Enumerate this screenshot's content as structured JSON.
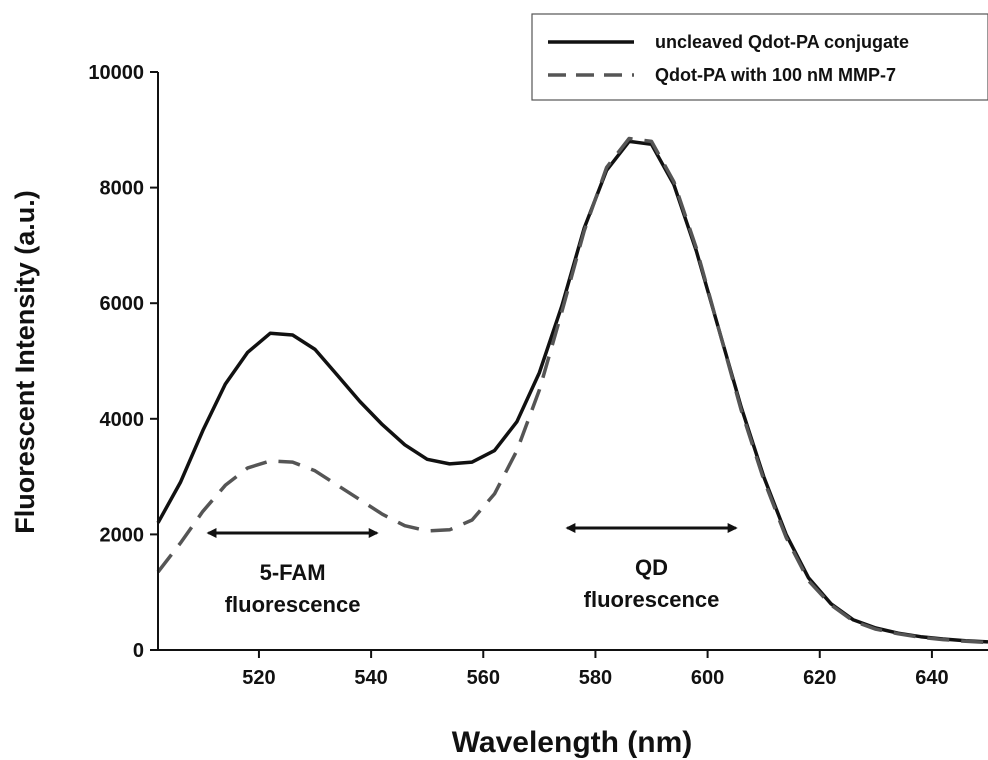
{
  "chart_data": {
    "type": "line",
    "xlabel": "Wavelength (nm)",
    "ylabel": "Fluorescent Intensity (a.u.)",
    "xlim": [
      502,
      650
    ],
    "ylim": [
      0,
      10000
    ],
    "x_ticks": [
      520,
      540,
      560,
      580,
      600,
      620,
      640
    ],
    "y_ticks": [
      0,
      2000,
      4000,
      6000,
      8000,
      10000
    ],
    "x_tick_labels": [
      "520",
      "540",
      "560",
      "580",
      "600",
      "620",
      "640"
    ],
    "y_tick_labels": [
      "0",
      "2000",
      "4000",
      "6000",
      "8000",
      "10000"
    ],
    "grid": false,
    "legend_position": "top-right",
    "series": [
      {
        "name": "uncleaved Qdot-PA conjugate",
        "style": "solid",
        "color": "#111111",
        "x": [
          502,
          506,
          510,
          514,
          518,
          522,
          526,
          530,
          534,
          538,
          542,
          546,
          550,
          554,
          558,
          562,
          566,
          570,
          574,
          578,
          582,
          586,
          590,
          594,
          598,
          602,
          606,
          610,
          614,
          618,
          622,
          626,
          630,
          634,
          638,
          642,
          646,
          650
        ],
        "values": [
          2200,
          2900,
          3800,
          4600,
          5150,
          5480,
          5450,
          5200,
          4750,
          4300,
          3900,
          3550,
          3300,
          3220,
          3250,
          3450,
          3950,
          4800,
          5950,
          7300,
          8300,
          8800,
          8750,
          8050,
          6900,
          5550,
          4200,
          3000,
          2000,
          1250,
          800,
          520,
          380,
          290,
          230,
          190,
          160,
          140
        ]
      },
      {
        "name": "Qdot-PA with 100 nM MMP-7",
        "style": "dashed",
        "color": "#555555",
        "x": [
          502,
          506,
          510,
          514,
          518,
          522,
          526,
          530,
          534,
          538,
          542,
          546,
          550,
          554,
          558,
          562,
          566,
          570,
          574,
          578,
          582,
          586,
          590,
          594,
          598,
          602,
          606,
          610,
          614,
          618,
          622,
          626,
          630,
          634,
          638,
          642,
          646,
          650
        ],
        "values": [
          1350,
          1850,
          2400,
          2850,
          3150,
          3270,
          3250,
          3100,
          2850,
          2600,
          2350,
          2150,
          2060,
          2080,
          2250,
          2700,
          3450,
          4500,
          5850,
          7250,
          8350,
          8850,
          8800,
          8100,
          6950,
          5550,
          4150,
          2950,
          1950,
          1200,
          780,
          500,
          360,
          280,
          220,
          180,
          150,
          130
        ]
      }
    ],
    "annotations": [
      {
        "lines": [
          "5-FAM",
          "fluorescence"
        ],
        "arrow_x": [
          511,
          541
        ]
      },
      {
        "lines": [
          "QD",
          "fluorescence"
        ],
        "arrow_x": [
          575,
          605
        ]
      }
    ]
  }
}
